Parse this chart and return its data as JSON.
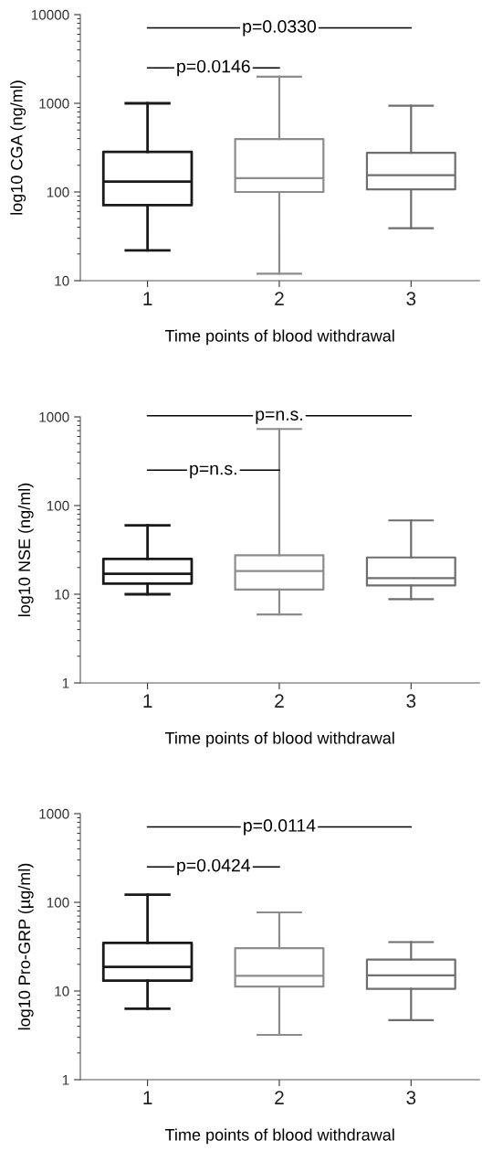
{
  "chart_data": [
    {
      "type": "box",
      "ylabel": "log10 CGA (ng/ml)",
      "xlabel": "Time points of blood withdrawal",
      "categories": [
        "1",
        "2",
        "3"
      ],
      "log": "y",
      "ylim": [
        10,
        10000
      ],
      "yticks": [
        10,
        100,
        1000,
        10000
      ],
      "grid": false,
      "colors": [
        "#1a1a1a",
        "#8c8c8c",
        "#6e6e6e"
      ],
      "boxes": [
        {
          "low": 22,
          "q1": 71,
          "median": 131,
          "q3": 283,
          "high": 1000
        },
        {
          "low": 12,
          "q1": 100,
          "median": 143,
          "q3": 395,
          "high": 2000
        },
        {
          "low": 39,
          "q1": 107,
          "median": 155,
          "q3": 276,
          "high": 940
        }
      ],
      "annotations": [
        "p=0.0330",
        "p=0.0146"
      ]
    },
    {
      "type": "box",
      "ylabel": "log10 NSE (ng/ml)",
      "xlabel": "Time points of blood withdrawal",
      "categories": [
        "1",
        "2",
        "3"
      ],
      "log": "y",
      "ylim": [
        1,
        1000
      ],
      "yticks": [
        1,
        10,
        100,
        1000
      ],
      "grid": false,
      "colors": [
        "#1a1a1a",
        "#8c8c8c",
        "#6e6e6e"
      ],
      "boxes": [
        {
          "low": 10,
          "q1": 13.2,
          "median": 17,
          "q3": 25,
          "high": 60
        },
        {
          "low": 5.9,
          "q1": 11.3,
          "median": 18.3,
          "q3": 27.5,
          "high": 730
        },
        {
          "low": 8.8,
          "q1": 12.6,
          "median": 15.2,
          "q3": 26,
          "high": 68
        }
      ],
      "annotations": [
        "p=n.s.",
        "p=n.s."
      ]
    },
    {
      "type": "box",
      "ylabel": "log10 Pro-GRP (µg/ml)",
      "xlabel": "Time points of blood withdrawal",
      "categories": [
        "1",
        "2",
        "3"
      ],
      "log": "y",
      "ylim": [
        1,
        1000
      ],
      "yticks": [
        1,
        10,
        100,
        1000
      ],
      "grid": false,
      "colors": [
        "#1a1a1a",
        "#8c8c8c",
        "#6e6e6e"
      ],
      "boxes": [
        {
          "low": 6.3,
          "q1": 13.1,
          "median": 18.7,
          "q3": 34.8,
          "high": 122
        },
        {
          "low": 3.2,
          "q1": 11.2,
          "median": 14.8,
          "q3": 30.4,
          "high": 77
        },
        {
          "low": 4.7,
          "q1": 10.6,
          "median": 15,
          "q3": 22.6,
          "high": 35.6
        }
      ],
      "annotations": [
        "p=0.0114",
        "p=0.0424"
      ]
    }
  ]
}
